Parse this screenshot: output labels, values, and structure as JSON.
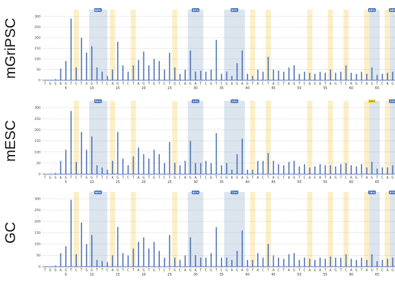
{
  "bases": "TGGAGTCTGGTTCAGTCTAGTGTCTGCAGATCGTCGAGAGTACTACTAGTCAGATAGTCAGTAGTCAGT",
  "x_ticks": [
    "5",
    "10",
    "15",
    "20",
    "25",
    "30",
    "35",
    "40",
    "45",
    "50",
    "55",
    "60",
    "65",
    "70"
  ],
  "y_ticks": [
    "0",
    "50",
    "100",
    "150",
    "200",
    "250",
    "300"
  ],
  "colors": {
    "trace": "#4a6fb5",
    "cpg_shade": "#dce5ee",
    "c_shade": "#fcefc6",
    "badge_blue": "#3a68b5",
    "badge_yellow": "#f2ea43",
    "gridline": "#9aa3ae"
  },
  "c_positions": [
    7,
    14,
    18,
    26,
    41,
    44,
    52,
    56,
    59,
    63,
    67
  ],
  "cpg_regions": [
    {
      "from": 10,
      "to": 12.5
    },
    {
      "from": 29,
      "to": 31
    },
    {
      "from": 36,
      "to": 39
    },
    {
      "from": 63,
      "to": 65
    },
    {
      "from": 67,
      "to": 69
    }
  ],
  "panels": [
    {
      "label": "mGriPSC",
      "badges": [
        {
          "pos": 11.2,
          "text": "83%",
          "style": "blue"
        },
        {
          "pos": 30,
          "text": "33%",
          "style": "blue"
        },
        {
          "pos": 37.5,
          "text": "62%",
          "style": "blue"
        },
        {
          "pos": 64,
          "text": "40%",
          "style": "blue"
        },
        {
          "pos": 68,
          "text": "36%",
          "style": "blue"
        }
      ],
      "peaks": [
        [
          3,
          5
        ],
        [
          4,
          55
        ],
        [
          5,
          90
        ],
        [
          6,
          290
        ],
        [
          7,
          60
        ],
        [
          8,
          200
        ],
        [
          9,
          130
        ],
        [
          10,
          160
        ],
        [
          11,
          60
        ],
        [
          12,
          40
        ],
        [
          13,
          20
        ],
        [
          14,
          50
        ],
        [
          15,
          180
        ],
        [
          16,
          70
        ],
        [
          17,
          40
        ],
        [
          18,
          70
        ],
        [
          19,
          95
        ],
        [
          20,
          135
        ],
        [
          21,
          70
        ],
        [
          22,
          100
        ],
        [
          23,
          90
        ],
        [
          24,
          50
        ],
        [
          25,
          130
        ],
        [
          26,
          60
        ],
        [
          27,
          30
        ],
        [
          28,
          50
        ],
        [
          29,
          140
        ],
        [
          30,
          40
        ],
        [
          31,
          45
        ],
        [
          32,
          40
        ],
        [
          33,
          50
        ],
        [
          34,
          190
        ],
        [
          35,
          30
        ],
        [
          36,
          40
        ],
        [
          37,
          20
        ],
        [
          38,
          80
        ],
        [
          39,
          140
        ],
        [
          40,
          30
        ],
        [
          41,
          20
        ],
        [
          42,
          50
        ],
        [
          43,
          40
        ],
        [
          44,
          110
        ],
        [
          45,
          50
        ],
        [
          46,
          45
        ],
        [
          47,
          40
        ],
        [
          48,
          60
        ],
        [
          49,
          70
        ],
        [
          50,
          30
        ],
        [
          51,
          40
        ],
        [
          52,
          35
        ],
        [
          53,
          30
        ],
        [
          54,
          40
        ],
        [
          55,
          35
        ],
        [
          56,
          50
        ],
        [
          57,
          35
        ],
        [
          58,
          40
        ],
        [
          59,
          70
        ],
        [
          60,
          35
        ],
        [
          61,
          30
        ],
        [
          62,
          40
        ],
        [
          63,
          30
        ],
        [
          64,
          60
        ],
        [
          65,
          25
        ],
        [
          66,
          30
        ],
        [
          67,
          35
        ],
        [
          68,
          40
        ],
        [
          69,
          70
        ],
        [
          70,
          45
        ],
        [
          71,
          30
        ]
      ]
    },
    {
      "label": "mESC",
      "badges": [
        {
          "pos": 11.2,
          "text": "51%",
          "style": "blue"
        },
        {
          "pos": 30,
          "text": "13%",
          "style": "blue"
        },
        {
          "pos": 37.5,
          "text": "15%",
          "style": "blue"
        },
        {
          "pos": 64,
          "text": "24%",
          "style": "yellow"
        },
        {
          "pos": 68,
          "text": "22%",
          "style": "blue"
        }
      ],
      "peaks": [
        [
          3,
          5
        ],
        [
          4,
          60
        ],
        [
          5,
          110
        ],
        [
          6,
          285
        ],
        [
          7,
          55
        ],
        [
          8,
          190
        ],
        [
          9,
          110
        ],
        [
          10,
          170
        ],
        [
          11,
          40
        ],
        [
          12,
          30
        ],
        [
          13,
          20
        ],
        [
          14,
          60
        ],
        [
          15,
          190
        ],
        [
          16,
          70
        ],
        [
          17,
          40
        ],
        [
          18,
          80
        ],
        [
          19,
          120
        ],
        [
          20,
          90
        ],
        [
          21,
          70
        ],
        [
          22,
          110
        ],
        [
          23,
          90
        ],
        [
          24,
          50
        ],
        [
          25,
          145
        ],
        [
          26,
          50
        ],
        [
          27,
          40
        ],
        [
          28,
          60
        ],
        [
          29,
          150
        ],
        [
          30,
          50
        ],
        [
          31,
          50
        ],
        [
          32,
          60
        ],
        [
          33,
          50
        ],
        [
          34,
          185
        ],
        [
          35,
          40
        ],
        [
          36,
          50
        ],
        [
          37,
          20
        ],
        [
          38,
          90
        ],
        [
          39,
          160
        ],
        [
          40,
          20
        ],
        [
          41,
          20
        ],
        [
          42,
          60
        ],
        [
          43,
          60
        ],
        [
          44,
          95
        ],
        [
          45,
          60
        ],
        [
          46,
          45
        ],
        [
          47,
          40
        ],
        [
          48,
          55
        ],
        [
          49,
          60
        ],
        [
          50,
          35
        ],
        [
          51,
          45
        ],
        [
          52,
          30
        ],
        [
          53,
          35
        ],
        [
          54,
          45
        ],
        [
          55,
          40
        ],
        [
          56,
          40
        ],
        [
          57,
          35
        ],
        [
          58,
          45
        ],
        [
          59,
          50
        ],
        [
          60,
          40
        ],
        [
          61,
          35
        ],
        [
          62,
          45
        ],
        [
          63,
          30
        ],
        [
          64,
          55
        ],
        [
          65,
          25
        ],
        [
          66,
          30
        ],
        [
          67,
          30
        ],
        [
          68,
          40
        ],
        [
          69,
          80
        ],
        [
          70,
          50
        ],
        [
          71,
          30
        ]
      ]
    },
    {
      "label": "GC",
      "badges": [
        {
          "pos": 11.2,
          "text": "90%",
          "style": "blue"
        },
        {
          "pos": 30,
          "text": "81%",
          "style": "blue"
        },
        {
          "pos": 37.5,
          "text": "73%",
          "style": "blue"
        },
        {
          "pos": 64,
          "text": "76%",
          "style": "blue"
        },
        {
          "pos": 68,
          "text": "87%",
          "style": "blue"
        }
      ],
      "peaks": [
        [
          3,
          5
        ],
        [
          4,
          60
        ],
        [
          5,
          90
        ],
        [
          6,
          295
        ],
        [
          7,
          55
        ],
        [
          8,
          195
        ],
        [
          9,
          100
        ],
        [
          10,
          140
        ],
        [
          11,
          30
        ],
        [
          12,
          25
        ],
        [
          13,
          20
        ],
        [
          14,
          50
        ],
        [
          15,
          175
        ],
        [
          16,
          60
        ],
        [
          17,
          50
        ],
        [
          18,
          80
        ],
        [
          19,
          110
        ],
        [
          20,
          130
        ],
        [
          21,
          80
        ],
        [
          22,
          110
        ],
        [
          23,
          70
        ],
        [
          24,
          40
        ],
        [
          25,
          140
        ],
        [
          26,
          40
        ],
        [
          27,
          30
        ],
        [
          28,
          50
        ],
        [
          29,
          130
        ],
        [
          30,
          50
        ],
        [
          31,
          40
        ],
        [
          32,
          40
        ],
        [
          33,
          60
        ],
        [
          34,
          175
        ],
        [
          35,
          40
        ],
        [
          36,
          40
        ],
        [
          37,
          30
        ],
        [
          38,
          70
        ],
        [
          39,
          160
        ],
        [
          40,
          30
        ],
        [
          41,
          30
        ],
        [
          42,
          60
        ],
        [
          43,
          40
        ],
        [
          44,
          100
        ],
        [
          45,
          50
        ],
        [
          46,
          40
        ],
        [
          47,
          35
        ],
        [
          48,
          55
        ],
        [
          49,
          60
        ],
        [
          50,
          30
        ],
        [
          51,
          40
        ],
        [
          52,
          35
        ],
        [
          53,
          30
        ],
        [
          54,
          40
        ],
        [
          55,
          35
        ],
        [
          56,
          45
        ],
        [
          57,
          40
        ],
        [
          58,
          40
        ],
        [
          59,
          55
        ],
        [
          60,
          35
        ],
        [
          61,
          30
        ],
        [
          62,
          40
        ],
        [
          63,
          30
        ],
        [
          64,
          55
        ],
        [
          65,
          25
        ],
        [
          66,
          30
        ],
        [
          67,
          35
        ],
        [
          68,
          40
        ],
        [
          69,
          70
        ],
        [
          70,
          45
        ],
        [
          71,
          30
        ]
      ]
    }
  ]
}
